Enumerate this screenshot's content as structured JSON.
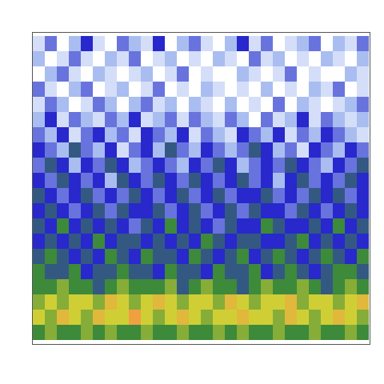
{
  "chart_data": {
    "type": "heatmap",
    "tick_labels": false,
    "zlim": [
      0,
      10
    ],
    "cells": [
      [
        1,
        3,
        0,
        2,
        4,
        1,
        0,
        3,
        2,
        1,
        4,
        0,
        2,
        3,
        1,
        0,
        2,
        4,
        1,
        3,
        0,
        1,
        2,
        3,
        0,
        2,
        1,
        3
      ],
      [
        2,
        0,
        1,
        3,
        1,
        0,
        2,
        1,
        3,
        0,
        1,
        2,
        0,
        1,
        0,
        2,
        1,
        0,
        3,
        1,
        2,
        0,
        1,
        0,
        2,
        1,
        0,
        2
      ],
      [
        0,
        2,
        3,
        1,
        0,
        2,
        1,
        0,
        1,
        2,
        0,
        1,
        3,
        0,
        1,
        0,
        0,
        2,
        1,
        0,
        1,
        3,
        0,
        1,
        0,
        0,
        2,
        1
      ],
      [
        3,
        1,
        0,
        2,
        3,
        0,
        1,
        2,
        0,
        1,
        3,
        0,
        1,
        0,
        2,
        1,
        0,
        1,
        0,
        2,
        0,
        1,
        0,
        2,
        1,
        3,
        0,
        1
      ],
      [
        1,
        3,
        2,
        0,
        1,
        3,
        2,
        0,
        2,
        3,
        1,
        2,
        0,
        2,
        1,
        0,
        2,
        0,
        1,
        0,
        3,
        0,
        2,
        1,
        0,
        1,
        2,
        3
      ],
      [
        2,
        4,
        1,
        3,
        2,
        1,
        3,
        2,
        4,
        1,
        2,
        3,
        1,
        3,
        2,
        1,
        3,
        2,
        0,
        3,
        1,
        2,
        4,
        1,
        3,
        2,
        1,
        2
      ],
      [
        3,
        2,
        4,
        1,
        3,
        4,
        2,
        3,
        1,
        4,
        3,
        2,
        4,
        1,
        3,
        2,
        1,
        4,
        3,
        2,
        4,
        1,
        3,
        2,
        4,
        3,
        2,
        1
      ],
      [
        4,
        3,
        2,
        5,
        3,
        2,
        4,
        1,
        3,
        4,
        2,
        5,
        3,
        2,
        4,
        3,
        2,
        3,
        5,
        4,
        2,
        3,
        1,
        4,
        3,
        2,
        4,
        3
      ],
      [
        3,
        5,
        4,
        2,
        4,
        3,
        5,
        4,
        2,
        3,
        4,
        3,
        2,
        4,
        3,
        5,
        4,
        2,
        3,
        4,
        3,
        5,
        4,
        3,
        2,
        4,
        3,
        5
      ],
      [
        4,
        3,
        5,
        4,
        3,
        4,
        2,
        5,
        4,
        3,
        5,
        4,
        3,
        5,
        4,
        3,
        4,
        5,
        3,
        4,
        2,
        4,
        5,
        3,
        4,
        3,
        5,
        4
      ],
      [
        5,
        4,
        3,
        4,
        5,
        3,
        4,
        3,
        5,
        4,
        3,
        4,
        5,
        3,
        4,
        5,
        3,
        4,
        4,
        5,
        3,
        4,
        3,
        5,
        4,
        5,
        3,
        4
      ],
      [
        4,
        5,
        4,
        3,
        4,
        5,
        3,
        5,
        4,
        4,
        5,
        3,
        4,
        5,
        3,
        4,
        5,
        3,
        5,
        4,
        4,
        3,
        5,
        4,
        3,
        4,
        5,
        4
      ],
      [
        5,
        4,
        6,
        4,
        5,
        4,
        5,
        4,
        3,
        5,
        4,
        6,
        4,
        5,
        4,
        3,
        5,
        4,
        4,
        6,
        5,
        4,
        4,
        5,
        4,
        6,
        4,
        5
      ],
      [
        4,
        5,
        4,
        5,
        4,
        6,
        4,
        5,
        5,
        4,
        5,
        4,
        5,
        4,
        6,
        5,
        4,
        5,
        5,
        4,
        4,
        5,
        6,
        4,
        5,
        4,
        5,
        4
      ],
      [
        5,
        6,
        5,
        4,
        5,
        4,
        6,
        5,
        4,
        6,
        5,
        5,
        4,
        6,
        5,
        4,
        5,
        6,
        4,
        5,
        6,
        5,
        4,
        5,
        6,
        5,
        4,
        6
      ],
      [
        6,
        5,
        5,
        6,
        4,
        5,
        5,
        6,
        5,
        5,
        4,
        6,
        5,
        5,
        4,
        6,
        5,
        5,
        6,
        4,
        5,
        6,
        5,
        4,
        5,
        6,
        6,
        5
      ],
      [
        6,
        6,
        7,
        6,
        6,
        5,
        6,
        7,
        6,
        6,
        6,
        7,
        5,
        6,
        7,
        6,
        6,
        5,
        6,
        7,
        6,
        6,
        7,
        6,
        5,
        6,
        7,
        6
      ],
      [
        7,
        8,
        7,
        8,
        8,
        7,
        9,
        8,
        7,
        8,
        9,
        8,
        7,
        8,
        8,
        7,
        9,
        8,
        7,
        8,
        8,
        9,
        7,
        8,
        8,
        7,
        8,
        9
      ],
      [
        8,
        7,
        9,
        8,
        7,
        9,
        8,
        8,
        10,
        8,
        7,
        8,
        9,
        8,
        7,
        8,
        8,
        9,
        8,
        8,
        7,
        9,
        8,
        7,
        8,
        9,
        8,
        7
      ],
      [
        6,
        7,
        6,
        6,
        7,
        6,
        7,
        6,
        6,
        7,
        6,
        6,
        7,
        6,
        6,
        7,
        6,
        7,
        6,
        6,
        7,
        6,
        6,
        7,
        6,
        6,
        7,
        6
      ]
    ]
  }
}
